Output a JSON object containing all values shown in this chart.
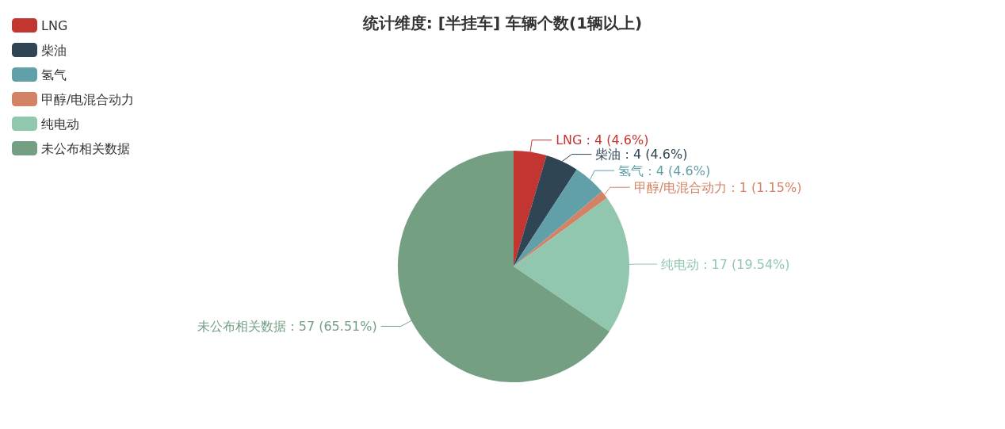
{
  "chart_data": {
    "type": "pie",
    "title": "统计维度: [半挂车] 车辆个数(1辆以上)",
    "categories": [
      "LNG",
      "柴油",
      "氢气",
      "甲醇/电混合动力",
      "纯电动",
      "未公布相关数据"
    ],
    "values": [
      4,
      4,
      4,
      1,
      17,
      57
    ],
    "colors": [
      "#c23531",
      "#2f4554",
      "#61a0a8",
      "#d48265",
      "#91c7ae",
      "#749f83"
    ],
    "value_labels": [
      "LNG : 4 (4.6%)",
      "柴油 : 4 (4.6%)",
      "氢气 : 4 (4.6%)",
      "甲醇/电混合动力 : 1 (1.15%)",
      "纯电动 : 17 (19.54%)",
      "未公布相关数据 : 57 (65.51%)"
    ],
    "legend": "top left"
  }
}
